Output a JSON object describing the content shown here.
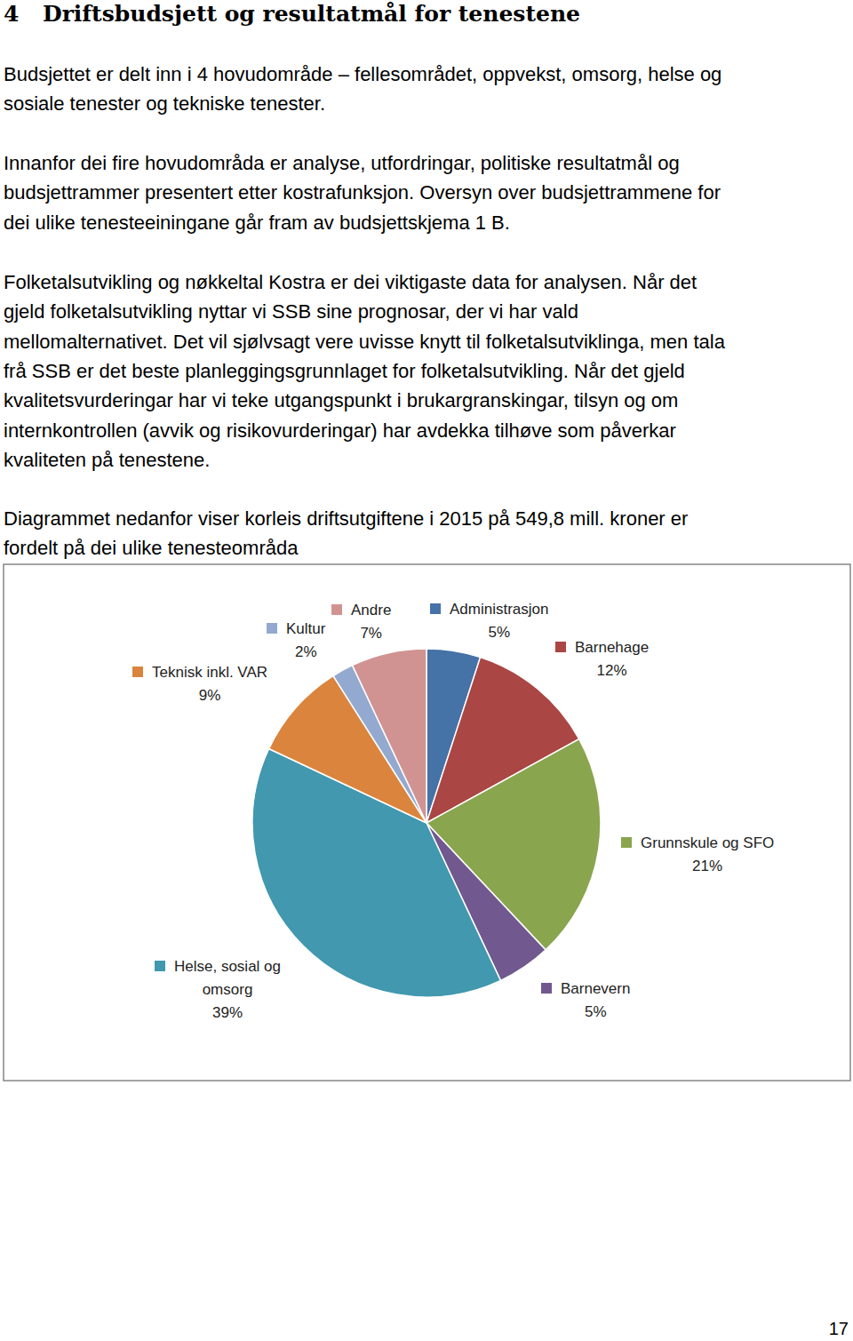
{
  "heading": {
    "number": "4",
    "title": "Driftsbudsjett og resultatmål for tenestene"
  },
  "paragraphs": [
    [
      "Budsjettet er delt inn i 4 hovudområde – fellesområdet, oppvekst, omsorg, helse og",
      "sosiale tenester og tekniske tenester."
    ],
    [
      "Innanfor dei fire hovudområda er analyse, utfordringar, politiske resultatmål og",
      "budsjettrammer presentert etter kostrafunksjon. Oversyn over budsjettrammene for",
      "dei ulike tenesteeiningane går fram av budsjettskjema 1 B."
    ],
    [
      "Folketalsutvikling og nøkkeltal Kostra er dei viktigaste data for analysen. Når det",
      "gjeld folketalsutvikling nyttar vi SSB sine prognosar, der vi har vald",
      "mellomalternativet.  Det vil sjølvsagt vere uvisse knytt til folketalsutviklinga, men tala",
      "frå SSB er det beste planleggingsgrunnlaget for folketalsutvikling.  Når det gjeld",
      "kvalitetsvurderingar har vi teke utgangspunkt i brukargranskingar, tilsyn og om",
      "internkontrollen (avvik og risikovurderingar) har avdekka tilhøve som påverkar",
      "kvaliteten på tenestene."
    ],
    [
      "Diagrammet nedanfor viser korleis driftsutgiftene i 2015 på 549,8 mill. kroner er",
      "fordelt på dei ulike tenesteområda"
    ]
  ],
  "chart_data": {
    "type": "pie",
    "categories": [
      "Administrasjon",
      "Barnehage",
      "Grunnskule og SFO",
      "Barnevern",
      "Helse, sosial og omsorg",
      "Teknisk inkl. VAR",
      "Kultur",
      "Andre"
    ],
    "values": [
      5,
      12,
      21,
      5,
      39,
      9,
      2,
      7
    ],
    "value_labels": [
      "5%",
      "12%",
      "21%",
      "5%",
      "39%",
      "9%",
      "2%",
      "7%"
    ],
    "colors": [
      "#4572a7",
      "#aa4643",
      "#89a54e",
      "#71588f",
      "#4198af",
      "#db843d",
      "#93a9cf",
      "#d19392"
    ],
    "data_labels": true
  },
  "page_number": 17
}
